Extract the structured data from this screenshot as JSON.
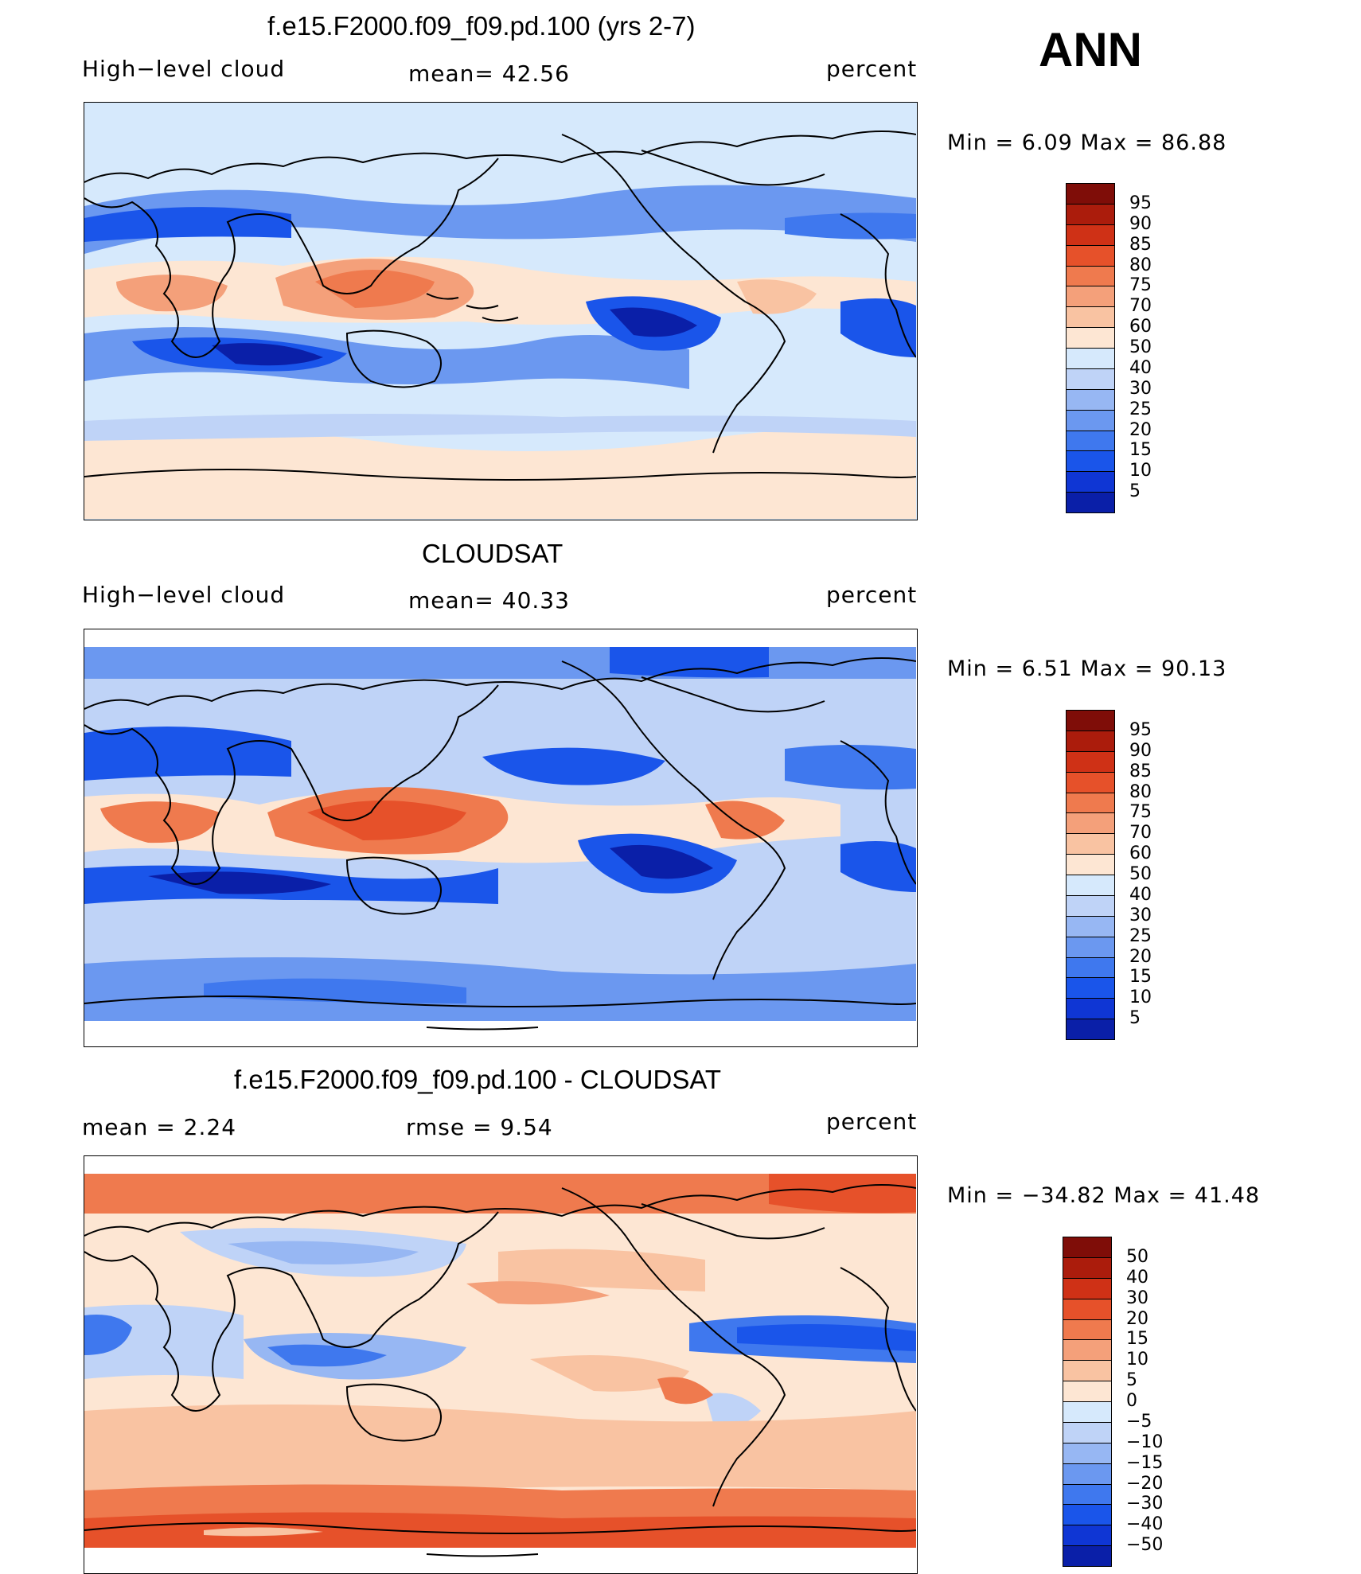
{
  "season": "ANN",
  "colors": {
    "seq": [
      "#08086e",
      "#0a1fa8",
      "#0f36d4",
      "#1a55ea",
      "#3f78ee",
      "#6b98f0",
      "#97b7f3",
      "#bfd3f7",
      "#d6e9fc",
      "#fde6d3",
      "#f9c3a2",
      "#f4a07a",
      "#ef7a4e",
      "#e6512a",
      "#cf3116",
      "#ab1c0c",
      "#7f0d08"
    ],
    "diff": [
      "#08086e",
      "#0a1fa8",
      "#0f36d4",
      "#1a55ea",
      "#3f78ee",
      "#6b98f0",
      "#97b7f3",
      "#bfd3f7",
      "#d6e9fc",
      "#fde6d3",
      "#f9c3a2",
      "#f4a07a",
      "#ef7a4e",
      "#e6512a",
      "#cf3116",
      "#ab1c0c",
      "#7f0d08"
    ]
  },
  "panels": [
    {
      "title": "f.e15.F2000.f09_f09.pd.100 (yrs 2-7)",
      "left": "High−level cloud",
      "center": "mean=   42.56",
      "right": "percent",
      "minmax": "Min  =     6.09  Max  =    86.88",
      "colorbar": [
        "95",
        "90",
        "85",
        "80",
        "75",
        "70",
        "60",
        "50",
        "40",
        "30",
        "25",
        "20",
        "15",
        "10",
        "5"
      ]
    },
    {
      "title": "CLOUDSAT",
      "left": "High−level cloud",
      "center": "mean=   40.33",
      "right": "percent",
      "minmax": "Min  =     6.51  Max  =    90.13",
      "colorbar": [
        "95",
        "90",
        "85",
        "80",
        "75",
        "70",
        "60",
        "50",
        "40",
        "30",
        "25",
        "20",
        "15",
        "10",
        "5"
      ]
    },
    {
      "title": "f.e15.F2000.f09_f09.pd.100 - CLOUDSAT",
      "left": "mean  =     2.24",
      "center": "rmse  =     9.54",
      "right": "percent",
      "minmax": "Min  = −34.82  Max  =    41.48",
      "colorbar": [
        "50",
        "40",
        "30",
        "20",
        "15",
        "10",
        "5",
        "0",
        "−5",
        "−10",
        "−15",
        "−20",
        "−30",
        "−40",
        "−50"
      ]
    }
  ]
}
